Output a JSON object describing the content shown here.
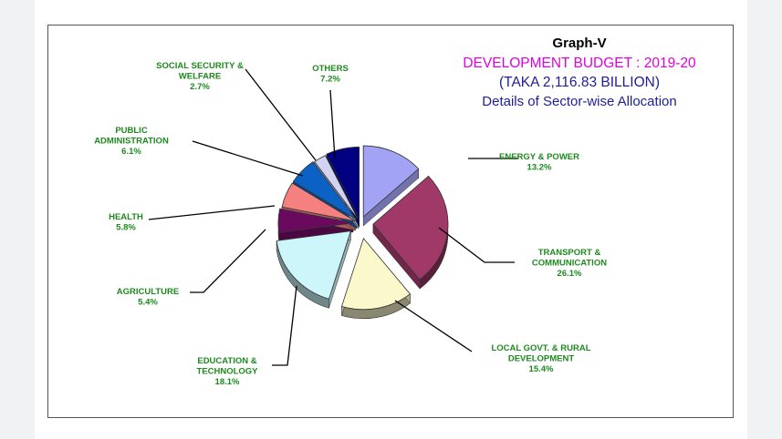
{
  "chart_data": {
    "type": "pie",
    "title": "Graph-V",
    "subtitle": "DEVELOPMENT BUDGET : 2019-20",
    "subtitle2": "(TAKA  2,116.83 BILLION)",
    "subtitle3": "Details of Sector-wise Allocation",
    "unit": "%",
    "slices": [
      {
        "label_lines": [
          "ENERGY & POWER"
        ],
        "value": 13.2,
        "value_text": "13.2%",
        "color": "#a3a3f5"
      },
      {
        "label_lines": [
          "TRANSPORT &",
          "COMMUNICATION"
        ],
        "value": 26.1,
        "value_text": "26.1%",
        "color": "#a03868"
      },
      {
        "label_lines": [
          "LOCAL GOVT. & RURAL",
          "DEVELOPMENT"
        ],
        "value": 15.4,
        "value_text": "15.4%",
        "color": "#fbf8cc"
      },
      {
        "label_lines": [
          "EDUCATION &",
          "TECHNOLOGY"
        ],
        "value": 18.1,
        "value_text": "18.1%",
        "color": "#ccf6fa"
      },
      {
        "label_lines": [
          "AGRICULTURE"
        ],
        "value": 5.4,
        "value_text": "5.4%",
        "color": "#6a0a5e"
      },
      {
        "label_lines": [
          "HEALTH"
        ],
        "value": 5.8,
        "value_text": "5.8%",
        "color": "#f58080"
      },
      {
        "label_lines": [
          "PUBLIC",
          "ADMINISTRATION"
        ],
        "value": 6.1,
        "value_text": "6.1%",
        "color": "#0c62c4"
      },
      {
        "label_lines": [
          "SOCIAL SECURITY &",
          "WELFARE"
        ],
        "value": 2.7,
        "value_text": "2.7%",
        "color": "#d2d2f2"
      },
      {
        "label_lines": [
          "OTHERS"
        ],
        "value": 7.2,
        "value_text": "7.2%",
        "color": "#000080"
      }
    ],
    "colors": {
      "title": "#000000",
      "subtitle": "#e100e1",
      "subtitle2": "#1e1e96",
      "subtitle3": "#1e1e96",
      "labels": "#1d8a1d",
      "leader_lines": "#000000"
    }
  }
}
